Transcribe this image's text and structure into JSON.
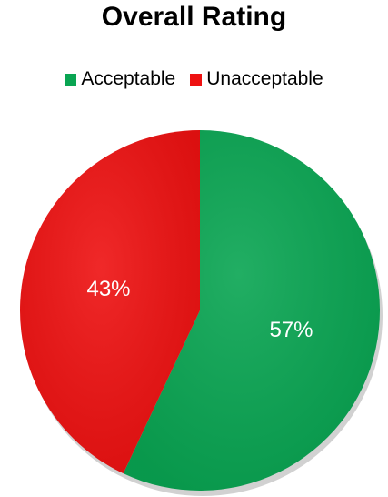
{
  "chart_data": {
    "type": "pie",
    "title": "Overall Rating",
    "legend_position": "top",
    "slices": [
      {
        "label": "Acceptable",
        "value": 57,
        "display": "57%",
        "color": "#09A552"
      },
      {
        "label": "Unacceptable",
        "value": 43,
        "display": "43%",
        "color": "#EE1111"
      }
    ]
  }
}
